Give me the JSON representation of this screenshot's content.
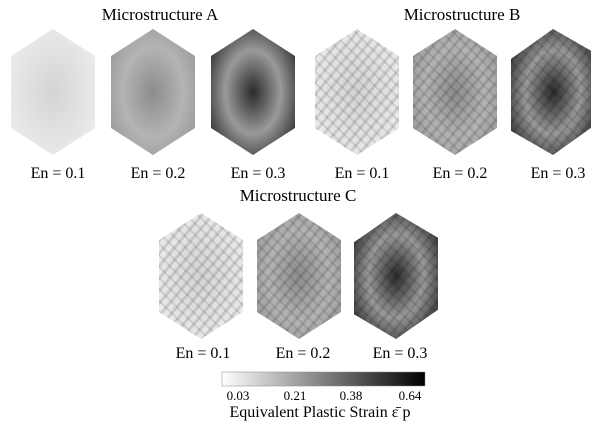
{
  "groups": [
    {
      "title": "Microstructure A",
      "panels": [
        "En = 0.1",
        "En = 0.2",
        "En = 0.3"
      ]
    },
    {
      "title": "Microstructure B",
      "panels": [
        "En = 0.1",
        "En = 0.2",
        "En = 0.3"
      ]
    },
    {
      "title": "Microstructure C",
      "panels": [
        "En = 0.1",
        "En = 0.2",
        "En = 0.3"
      ]
    }
  ],
  "colorbar": {
    "ticks": [
      "0.03",
      "0.21",
      "0.38",
      "0.64"
    ],
    "label": "Equivalent Plastic Strain ε̄ p"
  }
}
